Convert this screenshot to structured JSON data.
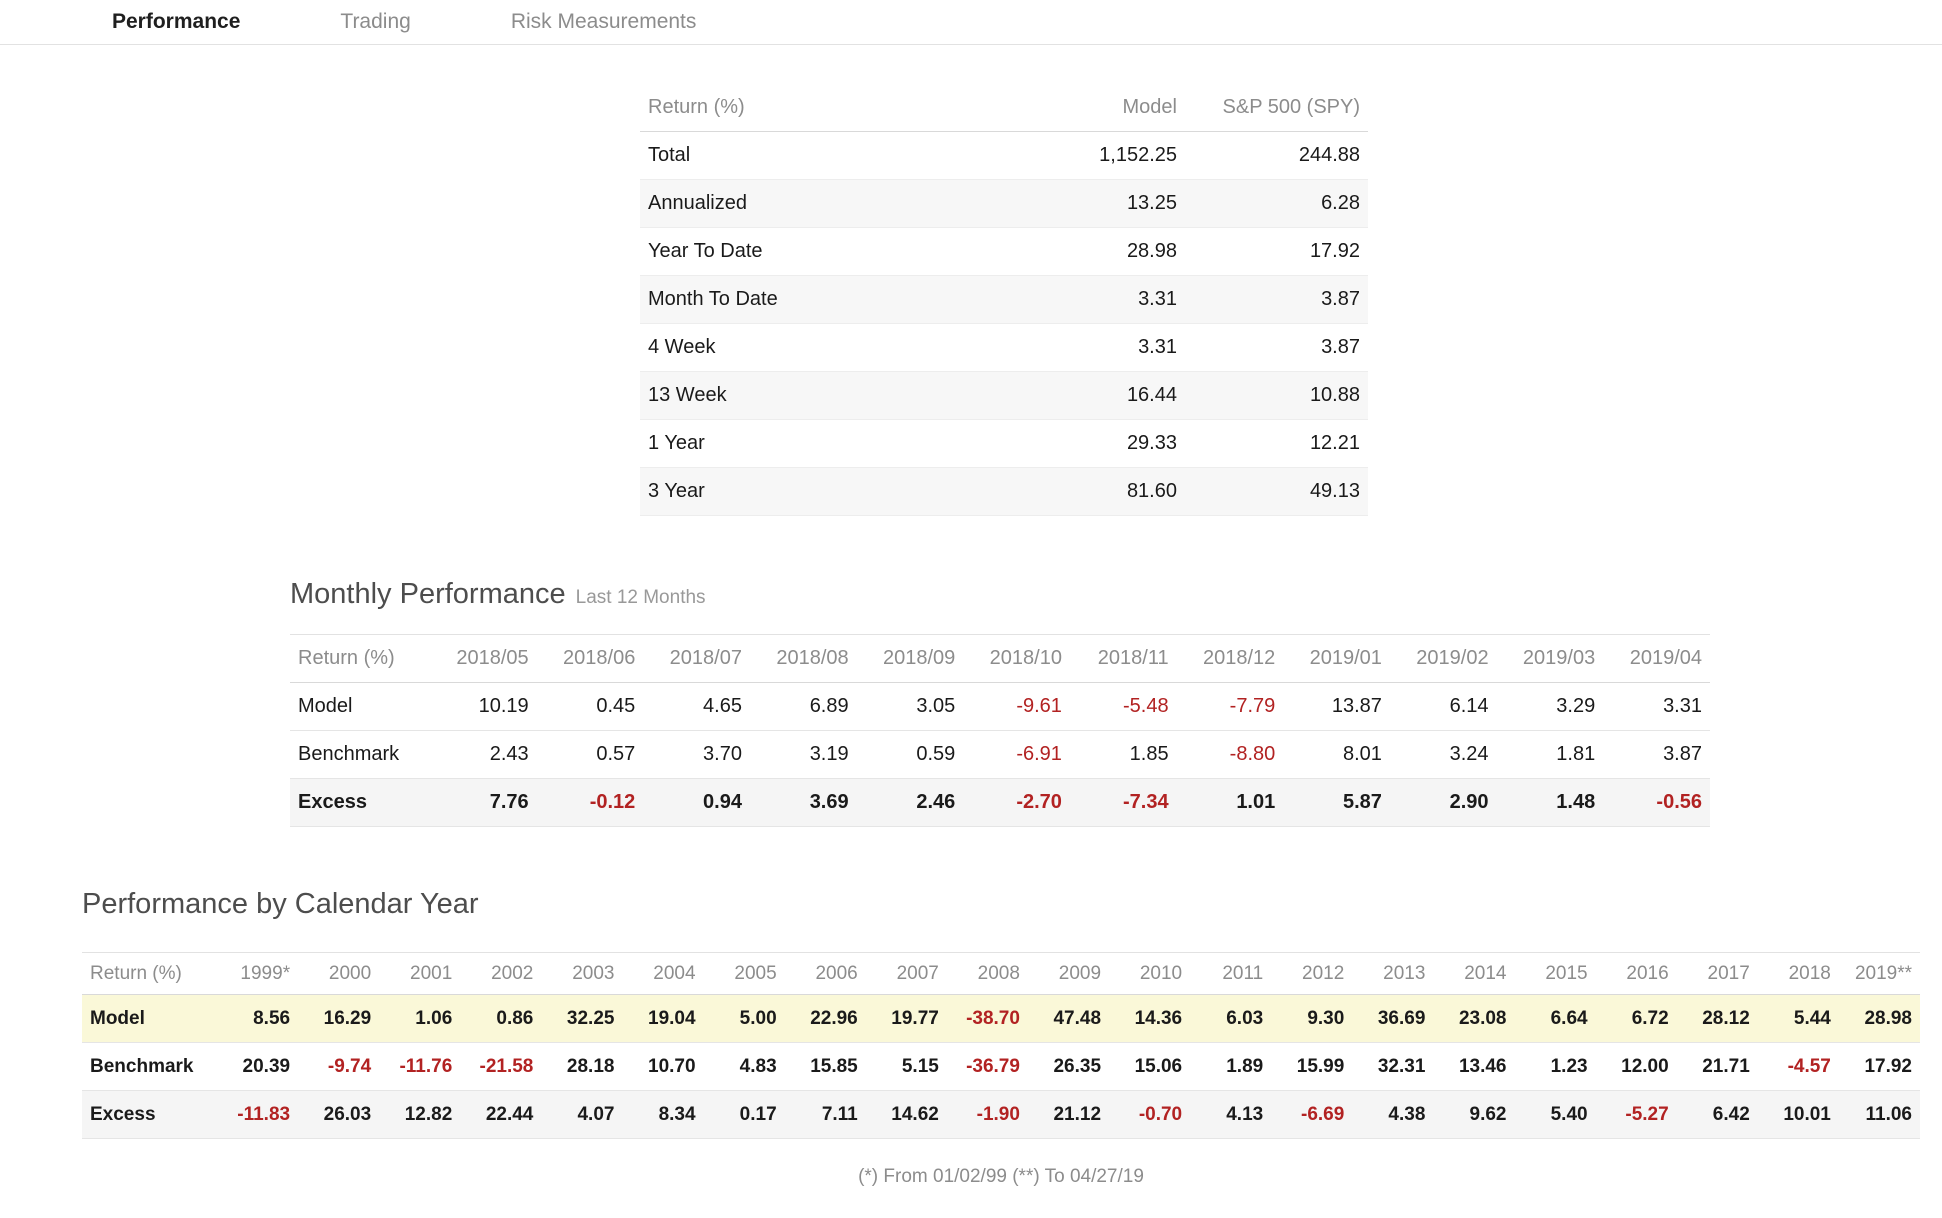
{
  "tabs": [
    {
      "label": "Performance",
      "active": true
    },
    {
      "label": "Trading",
      "active": false
    },
    {
      "label": "Risk Measurements",
      "active": false
    }
  ],
  "summary_table": {
    "header": {
      "label": "Return (%)",
      "model": "Model",
      "benchmark": "S&P 500 (SPY)"
    },
    "rows": [
      {
        "label": "Total",
        "model": "1,152.25",
        "benchmark": "244.88"
      },
      {
        "label": "Annualized",
        "model": "13.25",
        "benchmark": "6.28"
      },
      {
        "label": "Year To Date",
        "model": "28.98",
        "benchmark": "17.92"
      },
      {
        "label": "Month To Date",
        "model": "3.31",
        "benchmark": "3.87"
      },
      {
        "label": "4 Week",
        "model": "3.31",
        "benchmark": "3.87"
      },
      {
        "label": "13 Week",
        "model": "16.44",
        "benchmark": "10.88"
      },
      {
        "label": "1 Year",
        "model": "29.33",
        "benchmark": "12.21"
      },
      {
        "label": "3 Year",
        "model": "81.60",
        "benchmark": "49.13"
      }
    ]
  },
  "monthly": {
    "title": "Monthly Performance",
    "subtitle": "Last 12 Months",
    "header_label": "Return (%)",
    "months": [
      "2018/05",
      "2018/06",
      "2018/07",
      "2018/08",
      "2018/09",
      "2018/10",
      "2018/11",
      "2018/12",
      "2019/01",
      "2019/02",
      "2019/03",
      "2019/04"
    ],
    "rows": [
      {
        "label": "Model",
        "values": [
          "10.19",
          "0.45",
          "4.65",
          "6.89",
          "3.05",
          "-9.61",
          "-5.48",
          "-7.79",
          "13.87",
          "6.14",
          "3.29",
          "3.31"
        ]
      },
      {
        "label": "Benchmark",
        "values": [
          "2.43",
          "0.57",
          "3.70",
          "3.19",
          "0.59",
          "-6.91",
          "1.85",
          "-8.80",
          "8.01",
          "3.24",
          "1.81",
          "3.87"
        ]
      },
      {
        "label": "Excess",
        "values": [
          "7.76",
          "-0.12",
          "0.94",
          "3.69",
          "2.46",
          "-2.70",
          "-7.34",
          "1.01",
          "5.87",
          "2.90",
          "1.48",
          "-0.56"
        ]
      }
    ]
  },
  "calendar": {
    "title": "Performance by Calendar Year",
    "header_label": "Return (%)",
    "years": [
      "1999*",
      "2000",
      "2001",
      "2002",
      "2003",
      "2004",
      "2005",
      "2006",
      "2007",
      "2008",
      "2009",
      "2010",
      "2011",
      "2012",
      "2013",
      "2014",
      "2015",
      "2016",
      "2017",
      "2018",
      "2019**"
    ],
    "rows": [
      {
        "label": "Model",
        "values": [
          "8.56",
          "16.29",
          "1.06",
          "0.86",
          "32.25",
          "19.04",
          "5.00",
          "22.96",
          "19.77",
          "-38.70",
          "47.48",
          "14.36",
          "6.03",
          "9.30",
          "36.69",
          "23.08",
          "6.64",
          "6.72",
          "28.12",
          "5.44",
          "28.98"
        ]
      },
      {
        "label": "Benchmark",
        "values": [
          "20.39",
          "-9.74",
          "-11.76",
          "-21.58",
          "28.18",
          "10.70",
          "4.83",
          "15.85",
          "5.15",
          "-36.79",
          "26.35",
          "15.06",
          "1.89",
          "15.99",
          "32.31",
          "13.46",
          "1.23",
          "12.00",
          "21.71",
          "-4.57",
          "17.92"
        ]
      },
      {
        "label": "Excess",
        "values": [
          "-11.83",
          "26.03",
          "12.82",
          "22.44",
          "4.07",
          "8.34",
          "0.17",
          "7.11",
          "14.62",
          "-1.90",
          "21.12",
          "-0.70",
          "4.13",
          "-6.69",
          "4.38",
          "9.62",
          "5.40",
          "-5.27",
          "6.42",
          "10.01",
          "11.06"
        ]
      }
    ]
  },
  "footnote": "(*) From 01/02/99  (**) To 04/27/19",
  "colors": {
    "negative": "#b22222",
    "model_row_highlight": "#faf8d8",
    "excess_row_bg": "#f5f5f5",
    "alt_row_bg": "#f7f7f7",
    "header_text": "#8c8c8c",
    "active_tab_text": "#1f1f1f"
  }
}
